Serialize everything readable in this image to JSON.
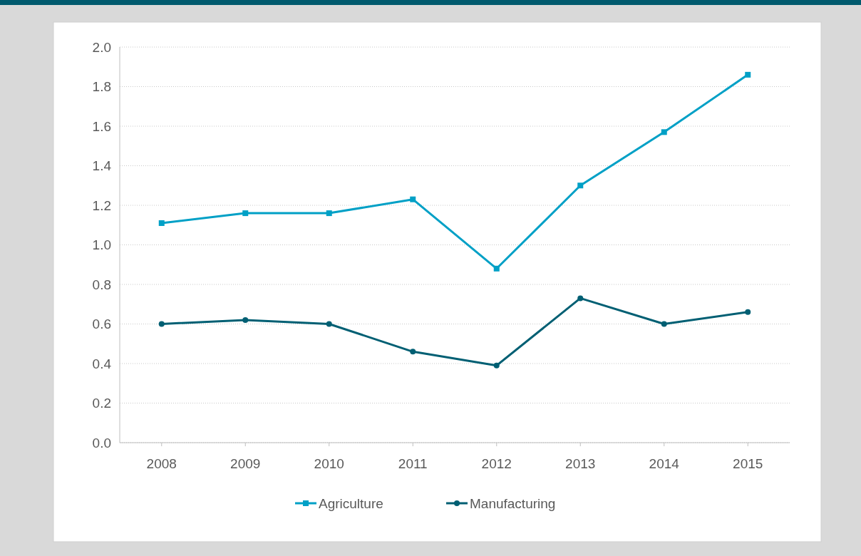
{
  "chart_data": {
    "type": "line",
    "categories": [
      "2008",
      "2009",
      "2010",
      "2011",
      "2012",
      "2013",
      "2014",
      "2015"
    ],
    "series": [
      {
        "name": "Agriculture",
        "color": "#00a0c6",
        "marker": "square",
        "values": [
          1.11,
          1.16,
          1.16,
          1.23,
          0.88,
          1.3,
          1.57,
          1.86
        ]
      },
      {
        "name": "Manufacturing",
        "color": "#005f73",
        "marker": "circle",
        "values": [
          0.6,
          0.62,
          0.6,
          0.46,
          0.39,
          0.73,
          0.6,
          0.66
        ]
      }
    ],
    "ylim": [
      0,
      2
    ],
    "yticks": [
      {
        "value": 0,
        "label": "0.0"
      },
      {
        "value": 0.2,
        "label": "0.2"
      },
      {
        "value": 0.4,
        "label": "0.4"
      },
      {
        "value": 0.6,
        "label": "0.6"
      },
      {
        "value": 0.8,
        "label": "0.8"
      },
      {
        "value": 1,
        "label": "1.0"
      },
      {
        "value": 1.2,
        "label": "1.2"
      },
      {
        "value": 1.4,
        "label": "1.4"
      },
      {
        "value": 1.6,
        "label": "1.6"
      },
      {
        "value": 1.8,
        "label": "1.8"
      },
      {
        "value": 2,
        "label": "2.0"
      }
    ],
    "grid": "y",
    "legend": "bottom",
    "line_style": "solid"
  }
}
